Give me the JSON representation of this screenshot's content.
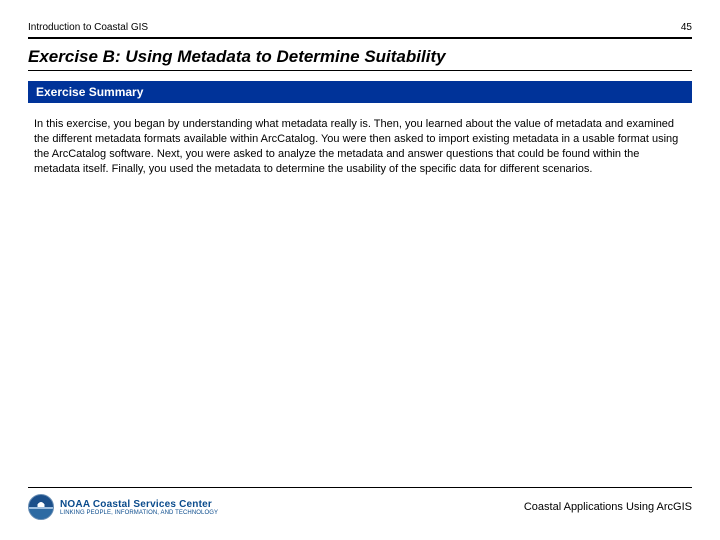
{
  "header": {
    "left": "Introduction to Coastal GIS",
    "page_number": "45"
  },
  "title": "Exercise B: Using Metadata to Determine Suitability",
  "section_heading": "Exercise Summary",
  "body": "In this exercise, you began by understanding what metadata really is. Then, you learned about the value of metadata and examined the different metadata formats available within ArcCatalog. You were then asked to import existing metadata in a usable format using the ArcCatalog software. Next, you were asked to analyze the metadata and answer questions that could be found within the metadata itself. Finally, you used the metadata to determine the usability of the specific data for different scenarios.",
  "footer": {
    "logo_title": "NOAA Coastal Services Center",
    "logo_tagline": "LINKING PEOPLE, INFORMATION, AND TECHNOLOGY",
    "right_text": "Coastal Applications Using ArcGIS"
  },
  "colors": {
    "section_bar_bg": "#003399",
    "section_bar_text": "#ffffff",
    "rule": "#000000",
    "logo_text": "#0a4b8c"
  }
}
